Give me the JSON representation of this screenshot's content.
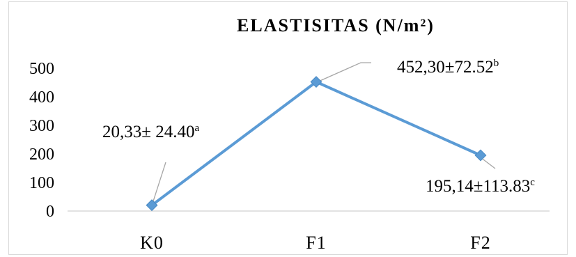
{
  "chart_data": {
    "type": "line",
    "title": "ELASTISITAS (N/m²)",
    "categories": [
      "K0",
      "F1",
      "F2"
    ],
    "series": [
      {
        "values": [
          20.33,
          452.3,
          195.14
        ],
        "color": "#5b9bd5"
      }
    ],
    "yticks": [
      "0",
      "100",
      "200",
      "300",
      "400",
      "500"
    ],
    "ylim": [
      0,
      500
    ],
    "grid": false,
    "legend": "none",
    "data_labels": [
      {
        "text": "20,33± 24.40",
        "sup": "a"
      },
      {
        "text": "452,30±72.52",
        "sup": "b"
      },
      {
        "text": "195,14±113.83",
        "sup": "c"
      }
    ]
  }
}
